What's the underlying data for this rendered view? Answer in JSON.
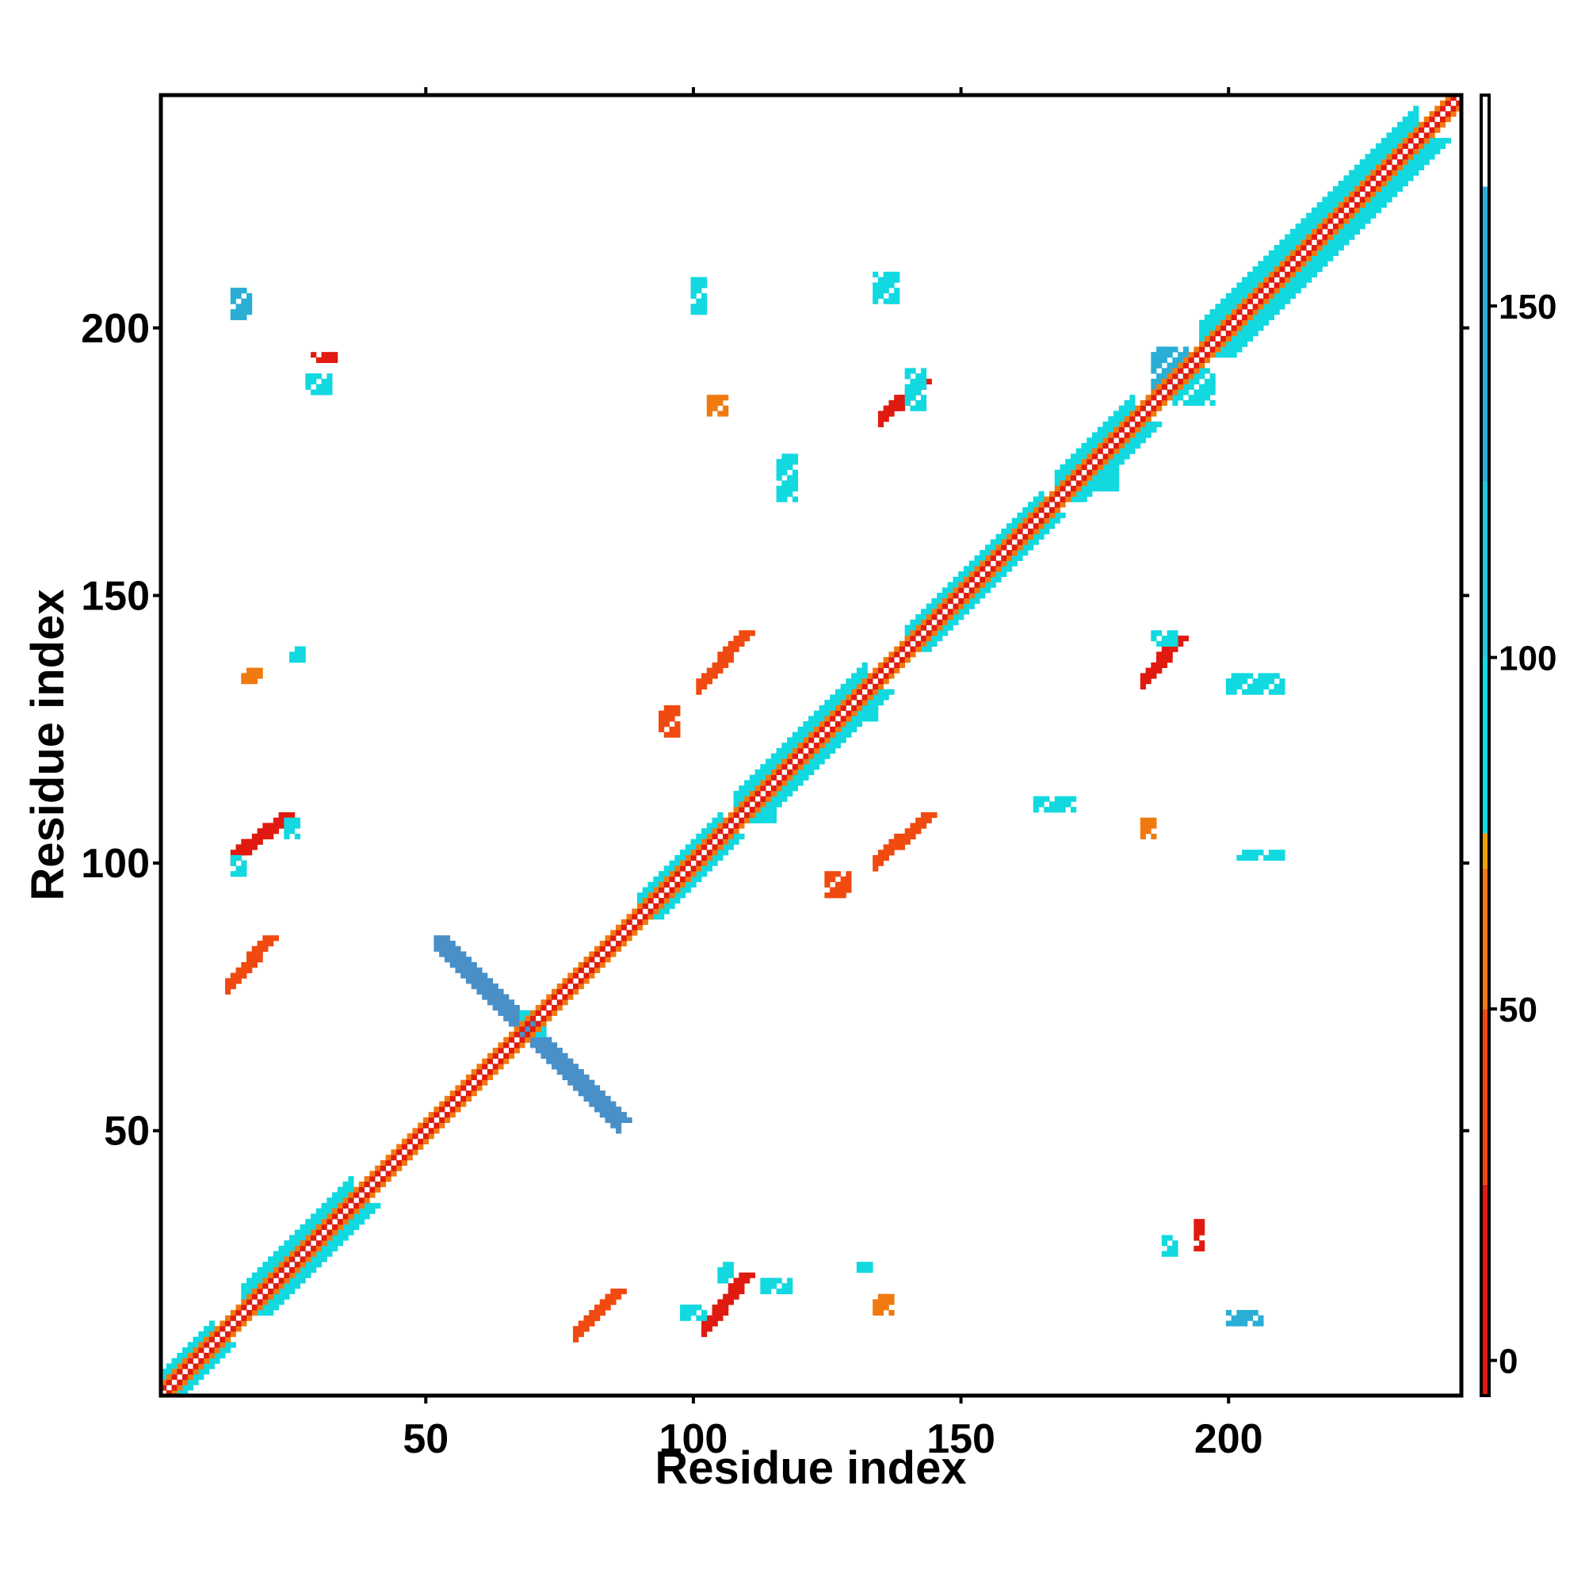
{
  "chart_data": {
    "type": "heatmap",
    "title": "",
    "xlabel": "Residue index",
    "ylabel": "Residue index",
    "xlim": [
      1,
      243
    ],
    "ylim": [
      1,
      243
    ],
    "x_ticks": [
      50,
      100,
      150,
      200
    ],
    "y_ticks": [
      50,
      100,
      150,
      200
    ],
    "colorbar": {
      "min": -5,
      "max": 180,
      "ticks": [
        0,
        50,
        100,
        150
      ],
      "bands": [
        {
          "from": -5,
          "to": 25,
          "color": "#e01a10"
        },
        {
          "from": 25,
          "to": 50,
          "color": "#f04a10"
        },
        {
          "from": 50,
          "to": 70,
          "color": "#f07a10"
        },
        {
          "from": 70,
          "to": 75,
          "color": "#f0a000"
        },
        {
          "from": 75,
          "to": 100,
          "color": "#12d8e0"
        },
        {
          "from": 100,
          "to": 125,
          "color": "#20c8dc"
        },
        {
          "from": 125,
          "to": 167,
          "color": "#2aaed6"
        },
        {
          "from": 167,
          "to": 180,
          "color": "#ffffff"
        }
      ]
    },
    "colors": {
      "red": "#e01a10",
      "red_orange": "#f04a10",
      "orange": "#f07a10",
      "amber": "#f0a000",
      "cyan": "#12d8e0",
      "light_blue": "#2aaed6",
      "steel_blue": "#4a90c8",
      "background": "#ffffff"
    },
    "main_diagonal": {
      "from": 2,
      "to": 243,
      "outer_color": "#f07a10",
      "inner_color": "#e01a10",
      "center_color": "#ffffff"
    },
    "features": [
      {
        "kind": "diagonal_band",
        "x": [
          1,
          10
        ],
        "y": [
          1,
          10
        ],
        "width": 2,
        "color": "#12d8e0"
      },
      {
        "kind": "diagonal_band",
        "x": [
          16,
          36
        ],
        "y": [
          16,
          36
        ],
        "width": 3,
        "color": "#12d8e0"
      },
      {
        "kind": "diagonal_band",
        "x": [
          108,
          132
        ],
        "y": [
          108,
          132
        ],
        "width": 3,
        "color": "#12d8e0"
      },
      {
        "kind": "diagonal_band",
        "x": [
          168,
          182
        ],
        "y": [
          168,
          182
        ],
        "width": 3,
        "color": "#12d8e0"
      },
      {
        "kind": "diagonal_band",
        "x": [
          195,
          235
        ],
        "y": [
          195,
          235
        ],
        "width": 4,
        "color": "#12d8e0"
      },
      {
        "kind": "diagonal_band",
        "x": [
          90,
          105
        ],
        "y": [
          90,
          105
        ],
        "width": 2,
        "color": "#12d8e0"
      },
      {
        "kind": "diagonal_band",
        "x": [
          140,
          165
        ],
        "y": [
          140,
          165
        ],
        "width": 2,
        "color": "#12d8e0"
      },
      {
        "kind": "segment",
        "x": [
          13,
          20
        ],
        "y": [
          78,
          86
        ],
        "width": 2,
        "color": "#f04a10"
      },
      {
        "kind": "segment",
        "x": [
          14,
          23
        ],
        "y": [
          102,
          109
        ],
        "width": 2,
        "color": "#e01a10"
      },
      {
        "kind": "segment",
        "x": [
          78,
          85
        ],
        "y": [
          13,
          20
        ],
        "width": 2,
        "color": "#f04a10"
      },
      {
        "kind": "segment",
        "x": [
          102,
          109
        ],
        "y": [
          14,
          23
        ],
        "width": 2,
        "color": "#e01a10"
      },
      {
        "kind": "segment",
        "x": [
          101,
          109
        ],
        "y": [
          134,
          143
        ],
        "width": 2,
        "color": "#f04a10"
      },
      {
        "kind": "segment",
        "x": [
          134,
          143
        ],
        "y": [
          101,
          109
        ],
        "width": 2,
        "color": "#f04a10"
      },
      {
        "kind": "segment",
        "x": [
          135,
          142
        ],
        "y": [
          184,
          190
        ],
        "width": 2,
        "color": "#e01a10"
      },
      {
        "kind": "segment",
        "x": [
          184,
          190
        ],
        "y": [
          135,
          142
        ],
        "width": 2,
        "color": "#e01a10"
      },
      {
        "kind": "segment",
        "x": [
          52,
          86
        ],
        "y": [
          86,
          52
        ],
        "width": 1.5,
        "color": "#4a90c8"
      },
      {
        "kind": "block",
        "x": [
          14,
          16
        ],
        "y": [
          98,
          101
        ],
        "color": "#12d8e0"
      },
      {
        "kind": "block",
        "x": [
          24,
          26
        ],
        "y": [
          105,
          108
        ],
        "color": "#12d8e0"
      },
      {
        "kind": "block",
        "x": [
          98,
          102
        ],
        "y": [
          15,
          17
        ],
        "color": "#12d8e0"
      },
      {
        "kind": "block",
        "x": [
          105,
          107
        ],
        "y": [
          22,
          25
        ],
        "color": "#12d8e0"
      },
      {
        "kind": "block",
        "x": [
          186,
          192
        ],
        "y": [
          189,
          196
        ],
        "color": "#2aaed6"
      },
      {
        "kind": "block",
        "x": [
          190,
          197
        ],
        "y": [
          186,
          192
        ],
        "color": "#12d8e0"
      },
      {
        "kind": "block",
        "x": [
          131,
          134
        ],
        "y": [
          127,
          130
        ],
        "color": "#12d8e0"
      },
      {
        "kind": "block",
        "x": [
          25,
          27
        ],
        "y": [
          138,
          140
        ],
        "color": "#12d8e0"
      },
      {
        "kind": "block",
        "x": [
          140,
          143
        ],
        "y": [
          185,
          192
        ],
        "color": "#12d8e0"
      },
      {
        "kind": "block",
        "x": [
          186,
          190
        ],
        "y": [
          141,
          143
        ],
        "color": "#12d8e0"
      },
      {
        "kind": "block",
        "x": [
          200,
          210
        ],
        "y": [
          132,
          135
        ],
        "color": "#12d8e0"
      },
      {
        "kind": "block",
        "x": [
          202,
          210
        ],
        "y": [
          101,
          102
        ],
        "color": "#12d8e0"
      },
      {
        "kind": "block",
        "x": [
          134,
          138
        ],
        "y": [
          205,
          210
        ],
        "color": "#12d8e0"
      },
      {
        "kind": "block",
        "x": [
          100,
          102
        ],
        "y": [
          203,
          209
        ],
        "color": "#12d8e0"
      },
      {
        "kind": "block",
        "x": [
          28,
          32
        ],
        "y": [
          188,
          191
        ],
        "color": "#12d8e0"
      },
      {
        "kind": "block",
        "x": [
          14,
          17
        ],
        "y": [
          202,
          207
        ],
        "color": "#2aaed6"
      },
      {
        "kind": "block",
        "x": [
          29,
          33
        ],
        "y": [
          194,
          195
        ],
        "color": "#e01a10"
      },
      {
        "kind": "block",
        "x": [
          103,
          106
        ],
        "y": [
          184,
          187
        ],
        "color": "#f07a10"
      },
      {
        "kind": "block",
        "x": [
          94,
          97
        ],
        "y": [
          124,
          129
        ],
        "color": "#f04a10"
      },
      {
        "kind": "block",
        "x": [
          125,
          129
        ],
        "y": [
          94,
          98
        ],
        "color": "#f04a10"
      },
      {
        "kind": "block",
        "x": [
          16,
          19
        ],
        "y": [
          134,
          136
        ],
        "color": "#f07a10"
      },
      {
        "kind": "block",
        "x": [
          134,
          137
        ],
        "y": [
          16,
          19
        ],
        "color": "#f07a10"
      },
      {
        "kind": "block",
        "x": [
          184,
          186
        ],
        "y": [
          105,
          108
        ],
        "color": "#f07a10"
      },
      {
        "kind": "block",
        "x": [
          188,
          190
        ],
        "y": [
          27,
          30
        ],
        "color": "#12d8e0"
      },
      {
        "kind": "block",
        "x": [
          194,
          195
        ],
        "y": [
          28,
          33
        ],
        "color": "#e01a10"
      },
      {
        "kind": "block",
        "x": [
          113,
          118
        ],
        "y": [
          20,
          22
        ],
        "color": "#12d8e0"
      },
      {
        "kind": "block",
        "x": [
          131,
          133
        ],
        "y": [
          24,
          25
        ],
        "color": "#12d8e0"
      },
      {
        "kind": "block",
        "x": [
          200,
          206
        ],
        "y": [
          14,
          16
        ],
        "color": "#2aaed6"
      },
      {
        "kind": "block",
        "x": [
          174,
          179
        ],
        "y": [
          170,
          173
        ],
        "color": "#12d8e0"
      },
      {
        "kind": "block",
        "x": [
          108,
          115
        ],
        "y": [
          108,
          111
        ],
        "color": "#12d8e0"
      },
      {
        "kind": "block",
        "x": [
          116,
          119
        ],
        "y": [
          168,
          176
        ],
        "color": "#12d8e0"
      },
      {
        "kind": "block",
        "x": [
          164,
          171
        ],
        "y": [
          110,
          112
        ],
        "color": "#12d8e0"
      },
      {
        "kind": "block",
        "x": [
          80,
          82
        ],
        "y": [
          80,
          82
        ],
        "color": "#12d8e0"
      },
      {
        "kind": "block",
        "x": [
          68,
          72
        ],
        "y": [
          68,
          72
        ],
        "color": "#12d8e0"
      },
      {
        "kind": "block",
        "x": [
          24,
          27
        ],
        "y": [
          24,
          27
        ],
        "color": "#12d8e0"
      }
    ]
  }
}
